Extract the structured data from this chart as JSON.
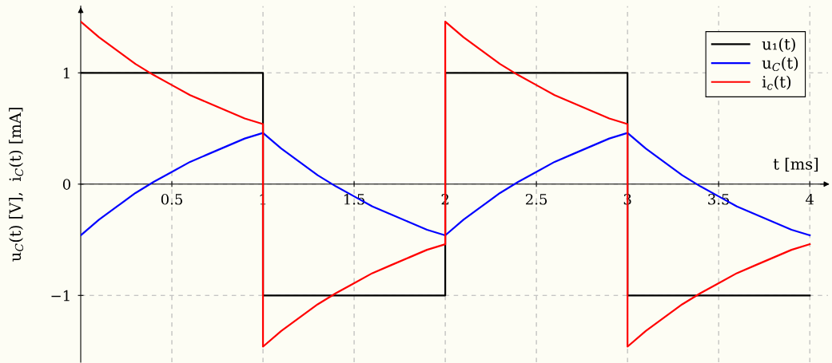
{
  "chart_data": {
    "type": "line",
    "xlabel": "t [ms]",
    "ylabel": "u$_{C}$(t) [V],  i$_{C}$(t) [mA]",
    "xlim": [
      0,
      4.1
    ],
    "ylim": [
      -1.6,
      1.6
    ],
    "xticks": [
      0.5,
      1,
      1.5,
      2,
      2.5,
      3,
      3.5,
      4
    ],
    "yticks": [
      {
        "value": -1,
        "label": "−1"
      },
      0,
      1
    ],
    "grid": true,
    "legend": "top right",
    "marker": "none",
    "line_style": "solid",
    "series": [
      {
        "name": "u₁(t)",
        "color": "#000000",
        "x": [
          0,
          1,
          1,
          2,
          2,
          3,
          3,
          4
        ],
        "values": [
          1,
          1,
          -1,
          -1,
          1,
          1,
          -1,
          -1
        ]
      },
      {
        "name": "u$_{C}$(t)",
        "color": "#0000ff",
        "x": [
          0,
          0.1,
          0.2,
          0.3,
          0.4,
          0.5,
          0.6,
          0.7,
          0.8,
          0.9,
          1,
          1.1,
          1.2,
          1.3,
          1.4,
          1.5,
          1.6,
          1.7,
          1.8,
          1.9,
          2,
          2.1,
          2.2,
          2.3,
          2.4,
          2.5,
          2.6,
          2.7,
          2.8,
          2.9,
          3,
          3.1,
          3.2,
          3.3,
          3.4,
          3.5,
          3.6,
          3.7,
          3.8,
          3.9,
          4
        ],
        "values": [
          -0.46,
          -0.32,
          -0.2,
          -0.08,
          0.02,
          0.11,
          0.2,
          0.27,
          0.34,
          0.41,
          0.46,
          0.32,
          0.2,
          0.08,
          -0.02,
          -0.11,
          -0.2,
          -0.27,
          -0.34,
          -0.41,
          -0.46,
          -0.32,
          -0.2,
          -0.08,
          0.02,
          0.11,
          0.2,
          0.27,
          0.34,
          0.41,
          0.46,
          0.32,
          0.2,
          0.08,
          -0.02,
          -0.11,
          -0.2,
          -0.27,
          -0.34,
          -0.41,
          -0.46
        ]
      },
      {
        "name": "i$_{c}$(t)",
        "color": "#ff0000",
        "x": [
          0,
          0.1,
          0.2,
          0.3,
          0.4,
          0.5,
          0.6,
          0.7,
          0.8,
          0.9,
          1,
          1,
          1.1,
          1.2,
          1.3,
          1.4,
          1.5,
          1.6,
          1.7,
          1.8,
          1.9,
          2,
          2,
          2.1,
          2.2,
          2.3,
          2.4,
          2.5,
          2.6,
          2.7,
          2.8,
          2.9,
          3,
          3,
          3.1,
          3.2,
          3.3,
          3.4,
          3.5,
          3.6,
          3.7,
          3.8,
          3.9,
          4
        ],
        "values": [
          1.46,
          1.32,
          1.2,
          1.08,
          0.98,
          0.89,
          0.8,
          0.73,
          0.66,
          0.59,
          0.54,
          -1.46,
          -1.32,
          -1.2,
          -1.08,
          -0.98,
          -0.89,
          -0.8,
          -0.73,
          -0.66,
          -0.59,
          -0.54,
          1.46,
          1.32,
          1.2,
          1.08,
          0.98,
          0.89,
          0.8,
          0.73,
          0.66,
          0.59,
          0.54,
          -1.46,
          -1.32,
          -1.2,
          -1.08,
          -0.98,
          -0.89,
          -0.8,
          -0.73,
          -0.66,
          -0.59,
          -0.54
        ]
      }
    ]
  }
}
